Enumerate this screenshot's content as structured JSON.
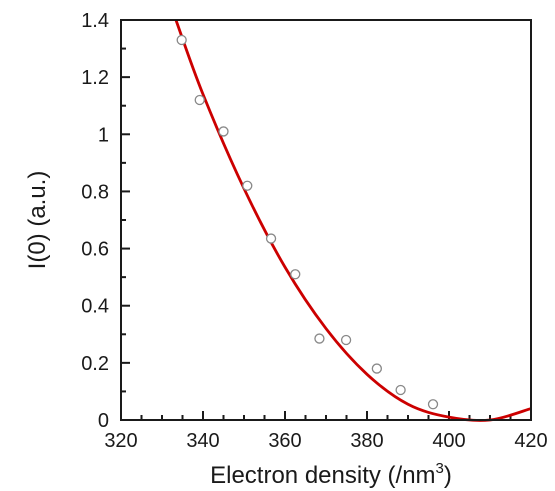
{
  "chart_data": {
    "type": "scatter",
    "xlabel": "Electron density (/nm",
    "xlabel_superscript": "3",
    "xlabel_suffix": ")",
    "ylabel": "I(0) (a.u.)",
    "xlim": [
      320,
      420
    ],
    "ylim": [
      0,
      1.4
    ],
    "x_ticks": [
      "320",
      "340",
      "360",
      "380",
      "400",
      "420"
    ],
    "y_ticks": [
      "0",
      "0.2",
      "0.4",
      "0.6",
      "0.8",
      "1",
      "1.2",
      "1.4"
    ],
    "x_tick_values": [
      320,
      340,
      360,
      380,
      400,
      420
    ],
    "y_tick_values": [
      0,
      0.2,
      0.4,
      0.6,
      0.8,
      1.0,
      1.2,
      1.4
    ],
    "x_minor_step": 5,
    "y_minor_step": 0.1,
    "grid": false,
    "series": [
      {
        "kind": "points",
        "marker": "open-circle",
        "color": "#888888",
        "points": [
          {
            "x": 334.8,
            "y": 1.33
          },
          {
            "x": 339.2,
            "y": 1.12
          },
          {
            "x": 345.0,
            "y": 1.01
          },
          {
            "x": 350.8,
            "y": 0.82
          },
          {
            "x": 356.6,
            "y": 0.635
          },
          {
            "x": 362.5,
            "y": 0.51
          },
          {
            "x": 368.4,
            "y": 0.285
          },
          {
            "x": 374.9,
            "y": 0.28
          },
          {
            "x": 382.4,
            "y": 0.18
          },
          {
            "x": 388.2,
            "y": 0.105
          },
          {
            "x": 396.1,
            "y": 0.055
          }
        ]
      },
      {
        "kind": "curve",
        "color": "#cc0000",
        "curve_points": [
          {
            "x": 333.4,
            "y": 1.4
          },
          {
            "x": 340,
            "y": 1.14
          },
          {
            "x": 350,
            "y": 0.81
          },
          {
            "x": 360,
            "y": 0.535
          },
          {
            "x": 370,
            "y": 0.32
          },
          {
            "x": 380,
            "y": 0.16
          },
          {
            "x": 390,
            "y": 0.055
          },
          {
            "x": 400,
            "y": 0.01
          },
          {
            "x": 410,
            "y": 0.0
          },
          {
            "x": 420,
            "y": 0.04
          }
        ]
      }
    ]
  }
}
